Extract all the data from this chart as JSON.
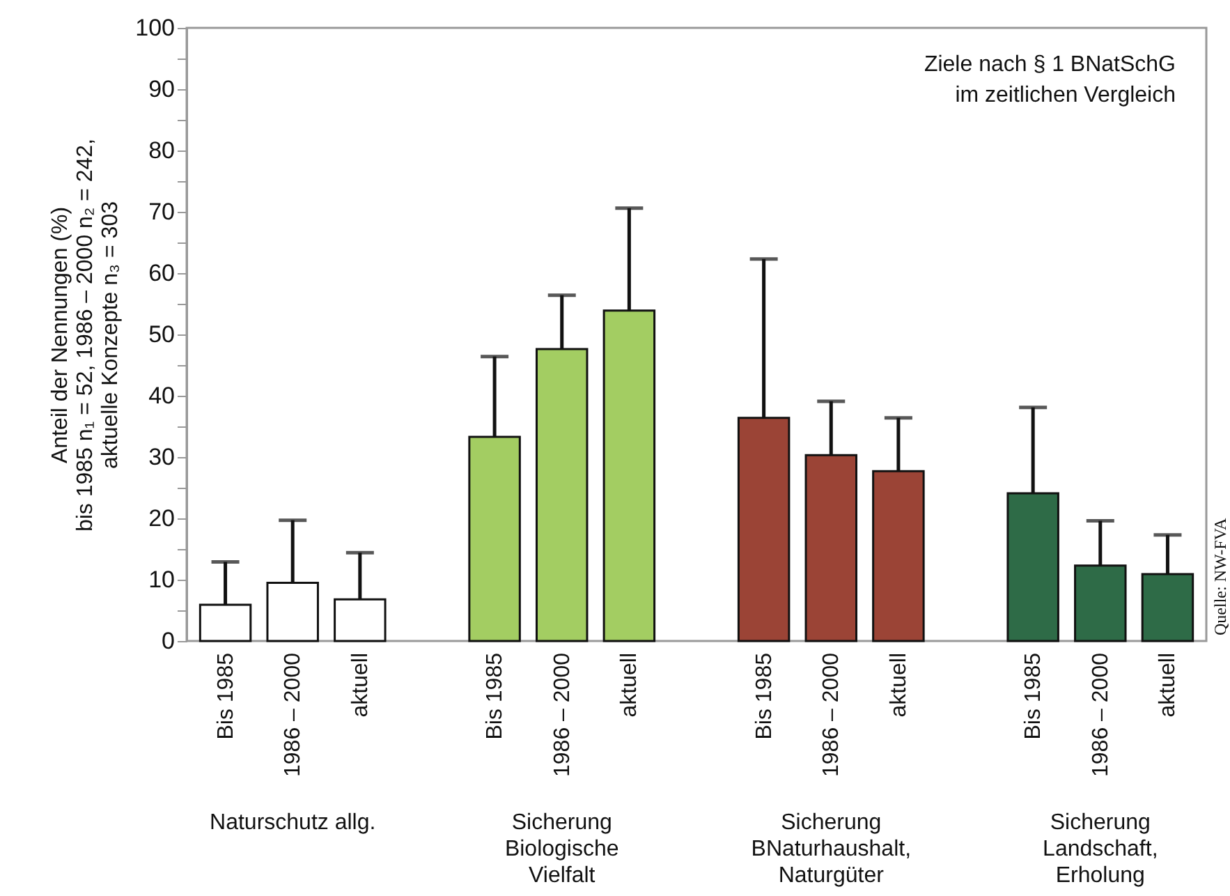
{
  "chart_data": {
    "type": "bar",
    "title": "Ziele nach § 1 BNatSchG\nim zeitlichen Vergleich",
    "ylabel": "Anteil der Nennungen (%)\nbis 1985 n₁ = 52, 1986 – 2000 n₂ = 242,\naktuelle Konzepte n₃ = 303",
    "categories": [
      "Bis 1985",
      "1986 – 2000",
      "aktuell",
      null,
      "Bis 1985",
      "1986 – 2000",
      "aktuell",
      null,
      "Bis 1985",
      "1986 – 2000",
      "aktuell",
      null,
      "Bis 1985",
      "1986 – 2000",
      "aktuell"
    ],
    "values": [
      5.9,
      9.5,
      6.8,
      null,
      33.3,
      47.6,
      53.9,
      null,
      36.4,
      30.3,
      27.7,
      null,
      24.1,
      12.3,
      10.9
    ],
    "colors": [
      "#ffffff",
      "#ffffff",
      "#ffffff",
      null,
      "#a3cd62",
      "#a3cd62",
      "#a3cd62",
      null,
      "#9b4436",
      "#9b4436",
      "#9b4436",
      null,
      "#2e6b47",
      "#2e6b47",
      "#2e6b47"
    ],
    "errors": [
      [
        5.9,
        12.9
      ],
      [
        9.5,
        19.7
      ],
      [
        6.8,
        14.4
      ],
      null,
      [
        33.3,
        46.4
      ],
      [
        47.6,
        56.4
      ],
      [
        53.9,
        70.6
      ],
      null,
      [
        36.4,
        62.3
      ],
      [
        30.3,
        39.1
      ],
      [
        27.7,
        36.4
      ],
      null,
      [
        24.1,
        38.1
      ],
      [
        12.3,
        19.6
      ],
      [
        10.9,
        17.3
      ]
    ],
    "ylim": [
      0,
      100
    ],
    "yticks": [
      0,
      {
        "value": 5,
        "label": null
      },
      10,
      {
        "value": 15,
        "label": null
      },
      20,
      {
        "value": 25,
        "label": null
      },
      30,
      {
        "value": 35,
        "label": null
      },
      40,
      {
        "value": 45,
        "label": null
      },
      50,
      {
        "value": 55,
        "label": null
      },
      60,
      {
        "value": 65,
        "label": null
      },
      70,
      {
        "value": 75,
        "label": null
      },
      80,
      {
        "value": 85,
        "label": null
      },
      90,
      {
        "value": 95,
        "label": null
      },
      100
    ],
    "grid": false,
    "annotations": [
      "Naturschutz allg.",
      "Sicherung\nBiologische\nVielfalt",
      "Sicherung\nBNaturhaushalt,\nNaturgüter",
      "Sicherung\nLandschaft,\nErholung",
      "Quelle: NW-FVA"
    ]
  }
}
